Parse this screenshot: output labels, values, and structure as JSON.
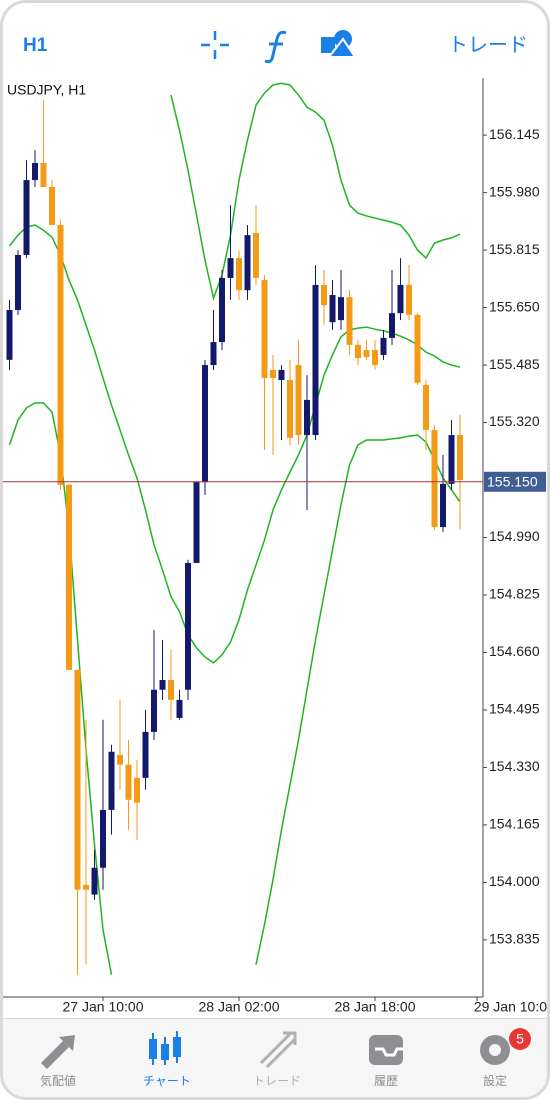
{
  "toolbar": {
    "timeframe": "H1",
    "trade": "トレード"
  },
  "chart_data": {
    "type": "candlestick",
    "title": "USDJPY, H1",
    "categories": [
      null,
      null,
      null,
      null,
      null,
      null,
      null,
      null,
      null,
      null,
      null,
      "27 Jan 10:00",
      null,
      null,
      null,
      null,
      null,
      null,
      null,
      null,
      null,
      null,
      null,
      null,
      null,
      null,
      null,
      "28 Jan 02:00",
      null,
      null,
      null,
      null,
      null,
      null,
      null,
      null,
      null,
      null,
      null,
      null,
      null,
      null,
      null,
      "28 Jan 18:00",
      null,
      null,
      null,
      null,
      null,
      null,
      null,
      null,
      null,
      null,
      null,
      "29 Jan 10:0"
    ],
    "open": [
      155.5,
      155.643,
      155.801,
      156.016,
      156.065,
      155.996,
      155.887,
      155.141,
      154.61,
      153.993,
      153.965,
      154.042,
      154.208,
      154.366,
      154.338,
      154.3,
      154.3,
      154.432,
      154.553,
      154.581,
      154.472,
      154.553,
      154.917,
      155.149,
      155.485,
      155.551,
      155.735,
      155.792,
      155.7,
      155.864,
      155.729,
      155.471,
      155.442,
      155.442,
      155.485,
      155.284,
      155.284,
      155.715,
      155.608,
      155.614,
      155.68,
      155.543,
      155.528,
      155.528,
      155.514,
      155.563,
      155.634,
      155.715,
      155.629,
      155.428,
      155.299,
      155.02,
      155.144,
      155.284,
      null,
      null
    ],
    "high": [
      155.672,
      155.815,
      156.073,
      156.102,
      156.245,
      156.016,
      155.901,
      155.144,
      154.61,
      154.467,
      154.094,
      154.467,
      154.395,
      154.524,
      154.409,
      154.352,
      154.495,
      154.725,
      154.696,
      154.667,
      154.553,
      154.926,
      155.149,
      155.5,
      155.643,
      155.758,
      155.944,
      155.815,
      155.887,
      155.944,
      155.743,
      155.514,
      155.485,
      155.5,
      155.557,
      155.456,
      155.772,
      155.758,
      155.729,
      155.758,
      155.7,
      155.557,
      155.557,
      155.557,
      155.586,
      155.758,
      155.792,
      155.772,
      155.634,
      155.442,
      155.313,
      155.227,
      155.327,
      155.342,
      null,
      null
    ],
    "low": [
      155.471,
      155.629,
      155.792,
      155.996,
      155.996,
      155.887,
      155.127,
      154.61,
      153.735,
      153.764,
      153.95,
      153.979,
      154.137,
      154.266,
      154.151,
      154.122,
      154.266,
      154.409,
      154.524,
      154.467,
      154.467,
      154.524,
      154.917,
      155.112,
      155.471,
      155.528,
      155.672,
      155.672,
      155.672,
      155.715,
      155.241,
      155.227,
      155.27,
      155.256,
      155.256,
      155.069,
      155.27,
      155.6,
      155.586,
      155.586,
      155.514,
      155.485,
      155.5,
      155.471,
      155.5,
      155.543,
      155.614,
      155.614,
      155.428,
      155.241,
      155.012,
      155.006,
      155.127,
      155.012,
      null,
      null
    ],
    "close": [
      155.643,
      155.801,
      156.016,
      156.065,
      155.996,
      155.887,
      155.141,
      154.61,
      153.979,
      153.979,
      154.042,
      154.208,
      154.375,
      154.338,
      154.237,
      154.229,
      154.432,
      154.553,
      154.581,
      154.524,
      154.524,
      154.917,
      155.149,
      155.485,
      155.551,
      155.735,
      155.792,
      155.7,
      155.858,
      155.735,
      155.448,
      155.448,
      155.471,
      155.276,
      155.284,
      155.385,
      155.715,
      155.657,
      155.686,
      155.68,
      155.543,
      155.505,
      155.508,
      155.485,
      155.563,
      155.634,
      155.715,
      155.629,
      155.434,
      155.299,
      155.02,
      155.144,
      155.284,
      155.155,
      null,
      null
    ],
    "up_color": "#141a6b",
    "down_color": "#f59a16",
    "lines": [
      {
        "color": "#1fb51f",
        "values": [
          null,
          null,
          null,
          null,
          null,
          null,
          null,
          null,
          null,
          null,
          null,
          null,
          null,
          null,
          null,
          null,
          null,
          null,
          null,
          156.26,
          156.159,
          156.045,
          155.916,
          155.786,
          155.677,
          155.743,
          155.858,
          156.016,
          156.131,
          156.231,
          156.266,
          156.289,
          156.294,
          156.289,
          156.26,
          156.225,
          156.211,
          156.188,
          156.116,
          156.016,
          155.944,
          155.921,
          155.913,
          155.907,
          155.901,
          155.895,
          155.887,
          155.858,
          155.815,
          155.792,
          155.835,
          155.844,
          155.85,
          155.861,
          null,
          null
        ]
      },
      {
        "color": "#1fb51f",
        "values": [
          155.827,
          155.858,
          155.881,
          155.887,
          155.872,
          155.852,
          155.801,
          155.729,
          155.672,
          155.6,
          155.528,
          155.448,
          155.37,
          155.299,
          155.227,
          155.161,
          155.069,
          154.969,
          154.897,
          154.82,
          154.777,
          154.711,
          154.673,
          154.647,
          154.63,
          154.653,
          154.69,
          154.754,
          154.84,
          154.911,
          154.983,
          155.069,
          155.127,
          155.178,
          155.227,
          155.284,
          155.37,
          155.456,
          155.514,
          155.566,
          155.586,
          155.591,
          155.594,
          155.588,
          155.583,
          155.577,
          155.568,
          155.557,
          155.543,
          155.522,
          155.511,
          155.494,
          155.485,
          155.479,
          null,
          null
        ]
      },
      {
        "color": "#1fb51f",
        "values": [
          155.256,
          155.327,
          155.362,
          155.376,
          155.376,
          155.35,
          155.227,
          155.012,
          154.696,
          154.381,
          154.108,
          153.864,
          153.735,
          null,
          null,
          null,
          null,
          null,
          null,
          null,
          null,
          null,
          null,
          null,
          null,
          null,
          null,
          null,
          null,
          153.764,
          153.879,
          154.008,
          154.151,
          154.28,
          154.409,
          154.553,
          154.696,
          154.825,
          154.954,
          155.084,
          155.198,
          155.256,
          155.27,
          155.27,
          155.27,
          155.273,
          155.276,
          155.281,
          155.284,
          155.264,
          155.213,
          155.161,
          155.127,
          155.092,
          null,
          null
        ]
      }
    ],
    "current_price": {
      "value": 155.15,
      "label": "155.150"
    },
    "current_color": "#a8323c",
    "ylim": [
      153.671,
      156.309
    ],
    "yticks": [
      156.145,
      {
        "value": 155.98,
        "label": "155.980"
      },
      155.815,
      {
        "value": 155.65,
        "label": "155.650"
      },
      155.485,
      {
        "value": 155.32,
        "label": "155.320"
      },
      {
        "value": 154.99,
        "label": "154.990"
      },
      154.825,
      {
        "value": 154.66,
        "label": "154.660"
      },
      154.495,
      {
        "value": 154.33,
        "label": "154.330"
      },
      154.165,
      {
        "value": 154,
        "label": "154.000"
      },
      153.835
    ]
  },
  "tabs": {
    "items": [
      "気配値",
      "チャート",
      "トレード",
      "履歴",
      "設定"
    ],
    "badge": 5
  }
}
